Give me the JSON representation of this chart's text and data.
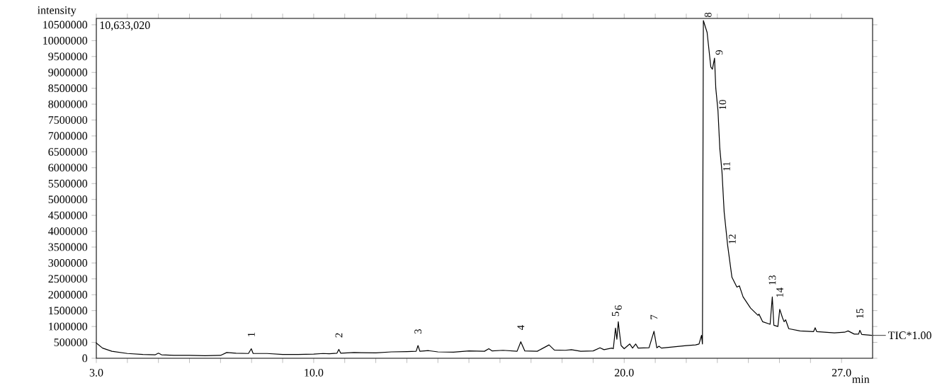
{
  "chart_data": {
    "type": "line",
    "xlabel": "min",
    "ylabel": "intensity",
    "annotations": [
      "10,633,020",
      {
        "text": "1",
        "x": 7.99,
        "y": 300000
      },
      {
        "text": "2",
        "x": 10.81,
        "y": 280000
      },
      {
        "text": "3",
        "x": 13.36,
        "y": 400000
      },
      {
        "text": "4",
        "x": 16.67,
        "y": 520000
      },
      {
        "text": "5",
        "x": 19.72,
        "y": 950000
      },
      {
        "text": "6",
        "x": 19.81,
        "y": 1150000
      },
      {
        "text": "7",
        "x": 20.96,
        "y": 850000
      },
      {
        "text": "8",
        "x": 22.55,
        "y": 10633020
      },
      {
        "text": "9",
        "x": 22.91,
        "y": 9450000
      },
      {
        "text": "10",
        "x": 23.02,
        "y": 7800000
      },
      {
        "text": "11",
        "x": 23.15,
        "y": 5860000
      },
      {
        "text": "12",
        "x": 23.33,
        "y": 3570000
      },
      {
        "text": "13",
        "x": 24.77,
        "y": 1930000
      },
      {
        "text": "14",
        "x": 25.01,
        "y": 1540000
      },
      {
        "text": "15",
        "x": 27.59,
        "y": 880000
      }
    ],
    "x": [
      3.0,
      3.2,
      3.5,
      4.0,
      4.5,
      4.9,
      5.0,
      5.1,
      5.5,
      6.0,
      6.5,
      7.0,
      7.2,
      7.5,
      7.9,
      7.99,
      8.05,
      8.5,
      9.0,
      9.5,
      10.0,
      10.3,
      10.5,
      10.75,
      10.81,
      10.87,
      11.3,
      12.0,
      12.5,
      13.0,
      13.3,
      13.36,
      13.42,
      13.7,
      14.0,
      14.5,
      15.0,
      15.5,
      15.64,
      15.75,
      16.1,
      16.55,
      16.67,
      16.8,
      17.2,
      17.58,
      17.75,
      18.1,
      18.3,
      18.6,
      19.0,
      19.22,
      19.35,
      19.6,
      19.65,
      19.72,
      19.765,
      19.81,
      19.85,
      19.9,
      20.0,
      20.18,
      20.27,
      20.37,
      20.45,
      20.8,
      20.96,
      21.05,
      21.12,
      21.2,
      21.6,
      22.0,
      22.3,
      22.41,
      22.49,
      22.52,
      22.55,
      22.67,
      22.79,
      22.84,
      22.91,
      22.95,
      23.02,
      23.08,
      23.15,
      23.22,
      23.33,
      23.47,
      23.63,
      23.71,
      23.83,
      24.07,
      24.31,
      24.34,
      24.46,
      24.7,
      24.77,
      24.82,
      24.95,
      25.01,
      25.1,
      25.15,
      25.2,
      25.3,
      25.66,
      26.1,
      26.15,
      26.2,
      26.77,
      27.1,
      27.21,
      27.41,
      27.55,
      27.59,
      27.65,
      27.97
    ],
    "series": [
      {
        "name": "TIC*1.00",
        "color": "#000000",
        "values": [
          480000,
          320000,
          220000,
          150000,
          120000,
          110000,
          160000,
          110000,
          90000,
          90000,
          80000,
          90000,
          180000,
          160000,
          150000,
          300000,
          150000,
          150000,
          120000,
          120000,
          130000,
          150000,
          140000,
          160000,
          280000,
          160000,
          180000,
          170000,
          200000,
          210000,
          220000,
          400000,
          220000,
          240000,
          200000,
          190000,
          230000,
          220000,
          300000,
          230000,
          250000,
          220000,
          520000,
          230000,
          220000,
          420000,
          260000,
          250000,
          270000,
          220000,
          230000,
          330000,
          270000,
          320000,
          300000,
          950000,
          600000,
          1150000,
          800000,
          400000,
          300000,
          450000,
          320000,
          450000,
          320000,
          330000,
          850000,
          330000,
          380000,
          320000,
          360000,
          400000,
          420000,
          450000,
          720000,
          450000,
          10633020,
          10260000,
          9170000,
          9100000,
          9450000,
          8500000,
          7800000,
          6600000,
          5860000,
          4600000,
          3570000,
          2550000,
          2240000,
          2280000,
          1930000,
          1580000,
          1350000,
          1390000,
          1150000,
          1070000,
          1930000,
          1040000,
          1000000,
          1540000,
          1270000,
          1150000,
          1210000,
          930000,
          860000,
          840000,
          960000,
          840000,
          800000,
          820000,
          860000,
          760000,
          760000,
          880000,
          750000,
          720000
        ]
      }
    ],
    "xlim": [
      3.0,
      28.0
    ],
    "ylim": [
      0,
      10700000
    ],
    "xticks": [
      {
        "value": 3,
        "label": "3.0"
      },
      {
        "value": 4,
        "label": null
      },
      {
        "value": 5,
        "label": null
      },
      {
        "value": 6,
        "label": null
      },
      {
        "value": 7,
        "label": null
      },
      {
        "value": 8,
        "label": null
      },
      {
        "value": 9,
        "label": null
      },
      {
        "value": 10,
        "label": "10.0"
      },
      {
        "value": 11,
        "label": null
      },
      {
        "value": 12,
        "label": null
      },
      {
        "value": 13,
        "label": null
      },
      {
        "value": 14,
        "label": null
      },
      {
        "value": 15,
        "label": null
      },
      {
        "value": 16,
        "label": null
      },
      {
        "value": 17,
        "label": null
      },
      {
        "value": 18,
        "label": null
      },
      {
        "value": 19,
        "label": null
      },
      {
        "value": 20,
        "label": "20.0"
      },
      {
        "value": 21,
        "label": null
      },
      {
        "value": 22,
        "label": null
      },
      {
        "value": 23,
        "label": null
      },
      {
        "value": 24,
        "label": null
      },
      {
        "value": 25,
        "label": null
      },
      {
        "value": 26,
        "label": null
      },
      {
        "value": 27,
        "label": "27.0"
      }
    ],
    "yticks": [
      0,
      500000,
      1000000,
      1500000,
      2000000,
      2500000,
      3000000,
      3500000,
      4000000,
      4500000,
      5000000,
      5500000,
      6000000,
      6500000,
      7000000,
      7500000,
      8000000,
      8500000,
      9000000,
      9500000,
      10000000,
      10500000
    ]
  }
}
